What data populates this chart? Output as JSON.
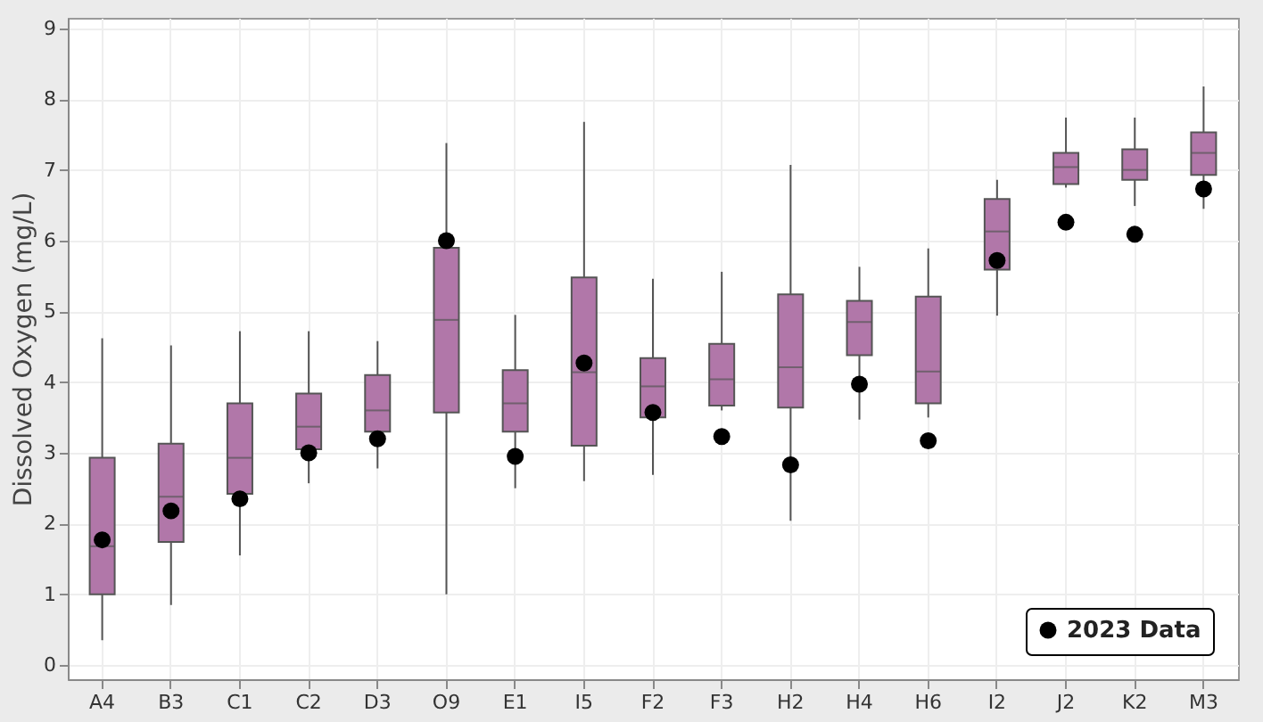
{
  "chart_data": {
    "type": "box",
    "ylabel": "Dissolved Oxygen (mg/L)",
    "categories": [
      "A4",
      "B3",
      "C1",
      "C2",
      "D3",
      "O9",
      "E1",
      "I5",
      "F2",
      "F3",
      "H2",
      "H4",
      "H6",
      "I2",
      "J2",
      "K2",
      "M3"
    ],
    "series": [
      {
        "color": "#b177a9",
        "boxes": [
          {
            "low": 0.35,
            "q1": 1.0,
            "median": 1.68,
            "q3": 2.93,
            "high": 4.62
          },
          {
            "low": 0.85,
            "q1": 1.74,
            "median": 2.38,
            "q3": 3.13,
            "high": 4.52
          },
          {
            "low": 1.55,
            "q1": 2.42,
            "median": 2.93,
            "q3": 3.7,
            "high": 4.72
          },
          {
            "low": 2.57,
            "q1": 3.05,
            "median": 3.37,
            "q3": 3.84,
            "high": 4.72
          },
          {
            "low": 2.78,
            "q1": 3.3,
            "median": 3.6,
            "q3": 4.1,
            "high": 4.58
          },
          {
            "low": 1.0,
            "q1": 3.57,
            "median": 4.88,
            "q3": 5.9,
            "high": 7.38
          },
          {
            "low": 2.5,
            "q1": 3.3,
            "median": 3.7,
            "q3": 4.17,
            "high": 4.95
          },
          {
            "low": 2.6,
            "q1": 3.1,
            "median": 4.14,
            "q3": 5.48,
            "high": 7.68
          },
          {
            "low": 2.69,
            "q1": 3.5,
            "median": 3.94,
            "q3": 4.34,
            "high": 5.46
          },
          {
            "low": 3.6,
            "q1": 3.67,
            "median": 4.04,
            "q3": 4.54,
            "high": 5.56
          },
          {
            "low": 2.04,
            "q1": 3.64,
            "median": 4.21,
            "q3": 5.24,
            "high": 7.07
          },
          {
            "low": 3.47,
            "q1": 4.38,
            "median": 4.85,
            "q3": 5.15,
            "high": 5.63
          },
          {
            "low": 3.5,
            "q1": 3.7,
            "median": 4.15,
            "q3": 5.21,
            "high": 5.89
          },
          {
            "low": 4.94,
            "q1": 5.59,
            "median": 6.13,
            "q3": 6.59,
            "high": 6.86
          },
          {
            "low": 6.75,
            "q1": 6.8,
            "median": 7.04,
            "q3": 7.24,
            "high": 7.74
          },
          {
            "low": 6.49,
            "q1": 6.86,
            "median": 7.0,
            "q3": 7.29,
            "high": 7.74
          },
          {
            "low": 6.45,
            "q1": 6.93,
            "median": 7.24,
            "q3": 7.53,
            "high": 8.18
          }
        ]
      },
      {
        "type": "scatter",
        "name": "2023 Data",
        "color": "#000000",
        "x": [
          "A4",
          "B3",
          "C1",
          "C2",
          "D3",
          "O9",
          "E1",
          "I5",
          "F2",
          "F3",
          "H2",
          "H4",
          "H6",
          "I2",
          "J2",
          "K2",
          "M3"
        ],
        "values": [
          1.77,
          2.18,
          2.35,
          3.0,
          3.2,
          6.0,
          2.95,
          4.27,
          3.57,
          3.23,
          2.83,
          3.97,
          3.17,
          5.72,
          6.26,
          6.09,
          6.73
        ]
      }
    ],
    "ylim": [
      -0.2,
      9.15
    ],
    "yticks": [
      0,
      1,
      2,
      3,
      4,
      5,
      6,
      7,
      8,
      9
    ],
    "grid": true,
    "legend": "bottom right",
    "marker": "circle"
  }
}
